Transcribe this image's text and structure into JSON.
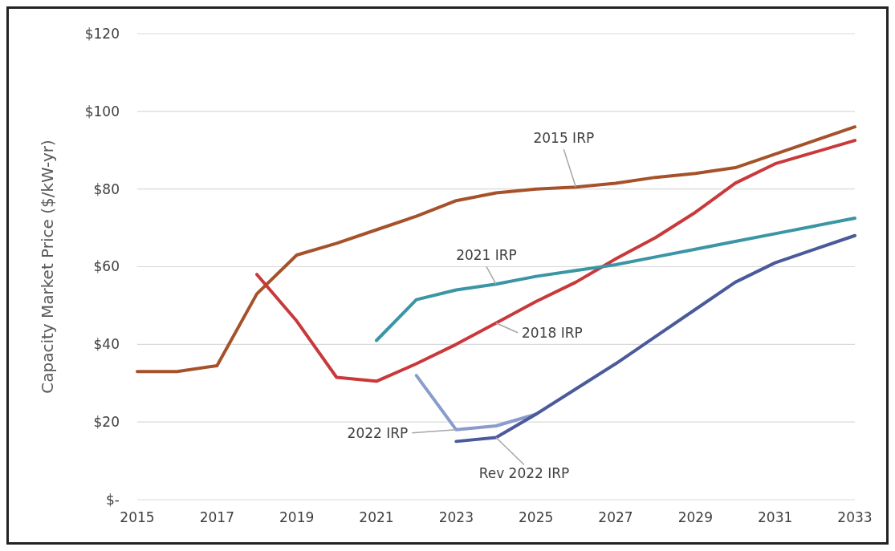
{
  "chart_data": {
    "type": "line",
    "ylabel": "Capacity Market Price ($/kW-yr)",
    "x": [
      2015,
      2016,
      2017,
      2018,
      2019,
      2020,
      2021,
      2022,
      2023,
      2024,
      2025,
      2026,
      2027,
      2028,
      2029,
      2030,
      2031,
      2032,
      2033
    ],
    "xlim": [
      2015,
      2033
    ],
    "xticks": [
      2015,
      2017,
      2019,
      2021,
      2023,
      2025,
      2027,
      2029,
      2031,
      2033
    ],
    "ylim": [
      0,
      120
    ],
    "yticks": [
      {
        "value": 0,
        "label": "$-"
      },
      {
        "value": 20,
        "label": "$20"
      },
      {
        "value": 40,
        "label": "$40"
      },
      {
        "value": 60,
        "label": "$60"
      },
      {
        "value": 80,
        "label": "$80"
      },
      {
        "value": 100,
        "label": "$100"
      },
      {
        "value": 120,
        "label": "$120"
      }
    ],
    "grid": "y",
    "line_style": "solid",
    "series": [
      {
        "name": "2015 IRP",
        "color": "#a5522b",
        "values": [
          33,
          33,
          34.5,
          53,
          63,
          66,
          69.5,
          73,
          77,
          79,
          80,
          80.5,
          81.5,
          83,
          84,
          85.5,
          89,
          92.5,
          96
        ]
      },
      {
        "name": "2018 IRP",
        "color": "#c9393b",
        "values": [
          null,
          null,
          null,
          58,
          46,
          31.5,
          30.5,
          35,
          40,
          45.5,
          51,
          56,
          62,
          67.5,
          74,
          81.5,
          86.5,
          89.5,
          92.5
        ]
      },
      {
        "name": "2021 IRP",
        "color": "#3a95a5",
        "values": [
          null,
          null,
          null,
          null,
          null,
          null,
          41,
          51.5,
          54,
          55.5,
          57.5,
          59,
          60.5,
          62.5,
          64.5,
          66.5,
          68.5,
          70.5,
          72.5
        ]
      },
      {
        "name": "2022 IRP",
        "color": "#8a9ccc",
        "values": [
          null,
          null,
          null,
          null,
          null,
          null,
          null,
          32,
          18,
          19,
          22,
          null,
          null,
          null,
          null,
          null,
          null,
          null,
          null
        ]
      },
      {
        "name": "Rev 2022 IRP",
        "color": "#4a5a9a",
        "values": [
          null,
          null,
          null,
          null,
          null,
          null,
          null,
          null,
          15,
          16,
          22,
          28.5,
          35,
          42,
          49,
          56,
          61,
          64.5,
          68
        ]
      }
    ]
  }
}
